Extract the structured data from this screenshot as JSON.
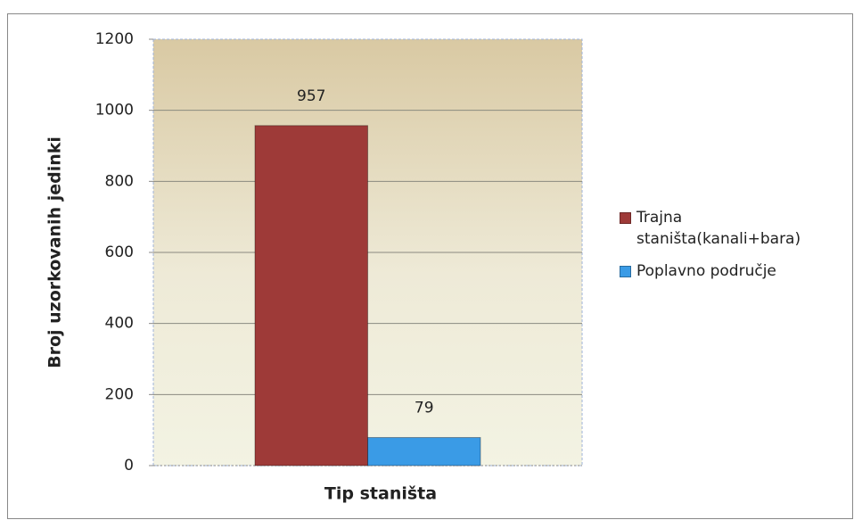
{
  "chart_data": {
    "type": "bar",
    "x_label": "Tip staništa",
    "y_label": "Broj uzorkovanih jedinki",
    "categories": [
      null
    ],
    "series": [
      {
        "name": "Trajna staništa(kanali+bara)",
        "color": "#9e3a38",
        "values": [
          957
        ]
      },
      {
        "name": "Poplavno područje",
        "color": "#3a9be6",
        "values": [
          79
        ]
      }
    ],
    "ylim": [
      0,
      1200
    ],
    "yticks": [
      0,
      200,
      400,
      600,
      800,
      1000,
      1200
    ],
    "grid": true,
    "legend": "right"
  }
}
